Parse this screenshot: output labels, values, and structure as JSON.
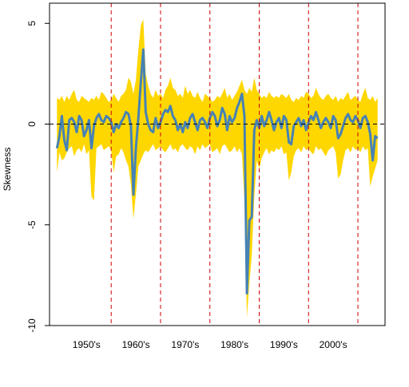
{
  "chart_data": {
    "type": "line",
    "title": "",
    "xlabel": "",
    "ylabel": "Skewness",
    "ylim": [
      -10,
      6
    ],
    "xlim": [
      1942.5,
      2010.5
    ],
    "y_ticks": [
      -10,
      -5,
      0,
      5
    ],
    "y_tick_labels": [
      "-10",
      "-5",
      "0",
      "5"
    ],
    "decade_labels": [
      "1950's",
      "1960's",
      "1970's",
      "1980's",
      "1990's",
      "2000's"
    ],
    "decade_label_positions": [
      1950,
      1960,
      1970,
      1980,
      1990,
      2000
    ],
    "decade_boundaries": [
      1955,
      1965,
      1975,
      1985,
      1995,
      2005
    ],
    "reference_line_y": 0,
    "series": [
      {
        "role": "band",
        "color": "#FFD700",
        "x": [
          1944.0,
          1944.5,
          1945.0,
          1945.5,
          1946.0,
          1946.5,
          1947.0,
          1947.5,
          1948.0,
          1948.5,
          1949.0,
          1949.5,
          1950.0,
          1950.5,
          1951.0,
          1951.5,
          1952.0,
          1952.5,
          1953.0,
          1953.5,
          1954.0,
          1954.5,
          1955.0,
          1955.5,
          1956.0,
          1956.5,
          1957.0,
          1957.5,
          1958.0,
          1958.5,
          1959.0,
          1959.5,
          1960.0,
          1960.5,
          1961.0,
          1961.5,
          1962.0,
          1962.5,
          1963.0,
          1963.5,
          1964.0,
          1964.5,
          1965.0,
          1965.5,
          1966.0,
          1966.5,
          1967.0,
          1967.5,
          1968.0,
          1968.5,
          1969.0,
          1969.5,
          1970.0,
          1970.5,
          1971.0,
          1971.5,
          1972.0,
          1972.5,
          1973.0,
          1973.5,
          1974.0,
          1974.5,
          1975.0,
          1975.5,
          1976.0,
          1976.5,
          1977.0,
          1977.5,
          1978.0,
          1978.5,
          1979.0,
          1979.5,
          1980.0,
          1980.5,
          1981.0,
          1981.5,
          1982.0,
          1982.5,
          1983.0,
          1983.5,
          1984.0,
          1984.5,
          1985.0,
          1985.5,
          1986.0,
          1986.5,
          1987.0,
          1987.5,
          1988.0,
          1988.5,
          1989.0,
          1989.5,
          1990.0,
          1990.5,
          1991.0,
          1991.5,
          1992.0,
          1992.5,
          1993.0,
          1993.5,
          1994.0,
          1994.5,
          1995.0,
          1995.5,
          1996.0,
          1996.5,
          1997.0,
          1997.5,
          1998.0,
          1998.5,
          1999.0,
          1999.5,
          2000.0,
          2000.5,
          2001.0,
          2001.5,
          2002.0,
          2002.5,
          2003.0,
          2003.5,
          2004.0,
          2004.5,
          2005.0,
          2005.5,
          2006.0,
          2006.5,
          2007.0,
          2007.5,
          2008.0,
          2008.5,
          2009.0
        ],
        "upper": [
          1.3,
          1.2,
          1.4,
          1.1,
          1.4,
          1.2,
          1.5,
          1.7,
          1.2,
          1.1,
          1.4,
          1.3,
          1.2,
          1.1,
          1.3,
          1.2,
          1.4,
          1.2,
          1.6,
          1.5,
          1.3,
          1.1,
          1.2,
          1.5,
          1.3,
          1.1,
          1.4,
          1.5,
          1.7,
          2.3,
          2.1,
          1.5,
          2.2,
          3.7,
          4.9,
          5.2,
          2.5,
          1.9,
          1.5,
          1.3,
          1.7,
          1.4,
          1.5,
          1.3,
          1.7,
          1.9,
          2.3,
          1.8,
          1.7,
          1.4,
          1.5,
          1.3,
          1.9,
          1.5,
          1.7,
          1.4,
          1.3,
          1.6,
          1.3,
          1.1,
          1.5,
          1.4,
          1.3,
          1.1,
          1.2,
          1.4,
          1.3,
          1.5,
          1.8,
          1.3,
          1.5,
          1.2,
          1.4,
          1.6,
          1.9,
          2.2,
          1.7,
          1.5,
          1.8,
          1.6,
          2.3,
          1.7,
          1.5,
          1.3,
          1.4,
          1.3,
          1.6,
          1.4,
          1.3,
          1.4,
          1.3,
          1.5,
          1.4,
          1.3,
          1.5,
          1.2,
          1.1,
          1.3,
          1.2,
          1.4,
          1.3,
          1.6,
          1.5,
          1.3,
          1.4,
          1.8,
          1.5,
          1.3,
          1.2,
          1.4,
          1.5,
          1.3,
          1.2,
          1.4,
          1.1,
          1.3,
          1.2,
          1.4,
          1.6,
          1.2,
          1.3,
          1.4,
          1.2,
          1.1,
          1.5,
          1.8,
          1.3,
          1.2,
          1.4,
          1.1,
          1.3
        ],
        "lower": [
          -2.4,
          -1.4,
          -1.8,
          -1.7,
          -1.4,
          -1.2,
          -1.1,
          -1.6,
          -1.3,
          -1.2,
          -1.4,
          -1.0,
          -1.5,
          -1.3,
          -3.6,
          -3.8,
          -1.2,
          -1.1,
          -1.0,
          -1.3,
          -1.2,
          -1.1,
          -1.3,
          -2.4,
          -1.6,
          -1.5,
          -1.2,
          -1.4,
          -1.8,
          -2.1,
          -3.0,
          -4.7,
          -3.5,
          -2.1,
          -1.8,
          -1.5,
          -1.3,
          -1.4,
          -1.2,
          -1.0,
          -1.3,
          -1.2,
          -1.1,
          -1.3,
          -1.4,
          -1.2,
          -1.0,
          -1.3,
          -1.2,
          -1.4,
          -1.1,
          -1.0,
          -1.2,
          -1.3,
          -1.1,
          -1.2,
          -1.5,
          -1.1,
          -1.3,
          -1.0,
          -1.2,
          -1.1,
          -1.0,
          -1.4,
          -1.3,
          -1.2,
          -1.5,
          -1.1,
          -1.0,
          -1.2,
          -1.4,
          -1.3,
          -1.1,
          -1.4,
          -1.2,
          -1.5,
          -3.8,
          -9.6,
          -7.9,
          -6.5,
          -3.6,
          -1.8,
          -2.2,
          -1.7,
          -1.4,
          -1.2,
          -1.5,
          -1.3,
          -1.4,
          -1.2,
          -1.3,
          -1.1,
          -1.5,
          -1.4,
          -2.8,
          -2.4,
          -1.6,
          -1.3,
          -1.2,
          -1.4,
          -1.1,
          -1.3,
          -1.2,
          -1.4,
          -1.5,
          -1.1,
          -1.3,
          -1.2,
          -1.4,
          -1.6,
          -1.3,
          -1.2,
          -1.1,
          -1.4,
          -2.7,
          -2.5,
          -1.8,
          -1.3,
          -1.2,
          -1.4,
          -1.1,
          -1.3,
          -1.2,
          -1.4,
          -1.1,
          -1.3,
          -1.2,
          -3.1,
          -2.6,
          -2.2,
          -1.8
        ],
        "name": ""
      },
      {
        "role": "line",
        "color": "#4682B4",
        "x": [
          1944.0,
          1944.5,
          1945.0,
          1945.5,
          1946.0,
          1946.5,
          1947.0,
          1947.5,
          1948.0,
          1948.5,
          1949.0,
          1949.5,
          1950.0,
          1950.5,
          1951.0,
          1951.5,
          1952.0,
          1952.5,
          1953.0,
          1953.5,
          1954.0,
          1954.5,
          1955.0,
          1955.5,
          1956.0,
          1956.5,
          1957.0,
          1957.5,
          1958.0,
          1958.5,
          1959.0,
          1959.5,
          1960.0,
          1960.5,
          1961.0,
          1961.5,
          1962.0,
          1962.5,
          1963.0,
          1963.5,
          1964.0,
          1964.5,
          1965.0,
          1965.5,
          1966.0,
          1966.5,
          1967.0,
          1967.5,
          1968.0,
          1968.5,
          1969.0,
          1969.5,
          1970.0,
          1970.5,
          1971.0,
          1971.5,
          1972.0,
          1972.5,
          1973.0,
          1973.5,
          1974.0,
          1974.5,
          1975.0,
          1975.5,
          1976.0,
          1976.5,
          1977.0,
          1977.5,
          1978.0,
          1978.5,
          1979.0,
          1979.5,
          1980.0,
          1980.5,
          1981.0,
          1981.5,
          1982.0,
          1982.5,
          1983.0,
          1983.5,
          1984.0,
          1984.5,
          1985.0,
          1985.5,
          1986.0,
          1986.5,
          1987.0,
          1987.5,
          1988.0,
          1988.5,
          1989.0,
          1989.5,
          1990.0,
          1990.5,
          1991.0,
          1991.5,
          1992.0,
          1992.5,
          1993.0,
          1993.5,
          1994.0,
          1994.5,
          1995.0,
          1995.5,
          1996.0,
          1996.5,
          1997.0,
          1997.5,
          1998.0,
          1998.5,
          1999.0,
          1999.5,
          2000.0,
          2000.5,
          2001.0,
          2001.5,
          2002.0,
          2002.5,
          2003.0,
          2003.5,
          2004.0,
          2004.5,
          2005.0,
          2005.5,
          2006.0,
          2006.5,
          2007.0,
          2007.5,
          2008.0,
          2008.5,
          2009.0
        ],
        "values": [
          -1.2,
          -0.6,
          0.4,
          -0.8,
          -1.3,
          0.2,
          0.3,
          0.1,
          -0.4,
          0.4,
          0.2,
          -0.6,
          -0.3,
          0.2,
          -1.2,
          -0.1,
          0.3,
          0.5,
          0.2,
          0.1,
          0.4,
          0.3,
          0.1,
          -0.4,
          0.0,
          -0.2,
          0.1,
          0.3,
          0.6,
          0.5,
          -0.1,
          -3.5,
          -1.2,
          0.3,
          2.1,
          3.7,
          0.6,
          0.0,
          -0.3,
          -0.4,
          0.3,
          -0.2,
          0.1,
          0.5,
          0.7,
          0.6,
          0.9,
          0.4,
          0.2,
          -0.3,
          0.0,
          -0.4,
          0.1,
          -0.2,
          0.3,
          0.5,
          0.1,
          -0.3,
          0.2,
          0.3,
          0.1,
          -0.2,
          0.3,
          0.6,
          0.4,
          -0.1,
          0.2,
          0.8,
          0.5,
          -0.3,
          0.4,
          0.1,
          0.3,
          0.8,
          1.1,
          1.5,
          0.4,
          -8.4,
          -4.8,
          -4.6,
          -0.3,
          0.2,
          -0.2,
          0.4,
          -0.1,
          0.2,
          0.6,
          0.2,
          -0.3,
          0.1,
          0.3,
          -0.2,
          0.4,
          0.2,
          -0.9,
          -1.0,
          -0.1,
          0.1,
          0.3,
          -0.1,
          0.2,
          -0.3,
          0.1,
          0.4,
          0.2,
          0.6,
          0.2,
          -0.2,
          0.1,
          0.3,
          0.1,
          -0.2,
          0.4,
          0.2,
          -0.7,
          -0.5,
          -0.1,
          0.3,
          0.5,
          0.2,
          0.1,
          0.4,
          0.2,
          -0.2,
          0.3,
          0.4,
          0.1,
          -0.5,
          -1.8,
          -0.6,
          -0.7
        ],
        "name": ""
      }
    ],
    "grid": false,
    "legend": "none"
  },
  "style": {
    "band_color": "#FFD700",
    "line_color": "#4682B4",
    "decade_line_color": "#CC0000",
    "zero_line_color": "#000000"
  }
}
